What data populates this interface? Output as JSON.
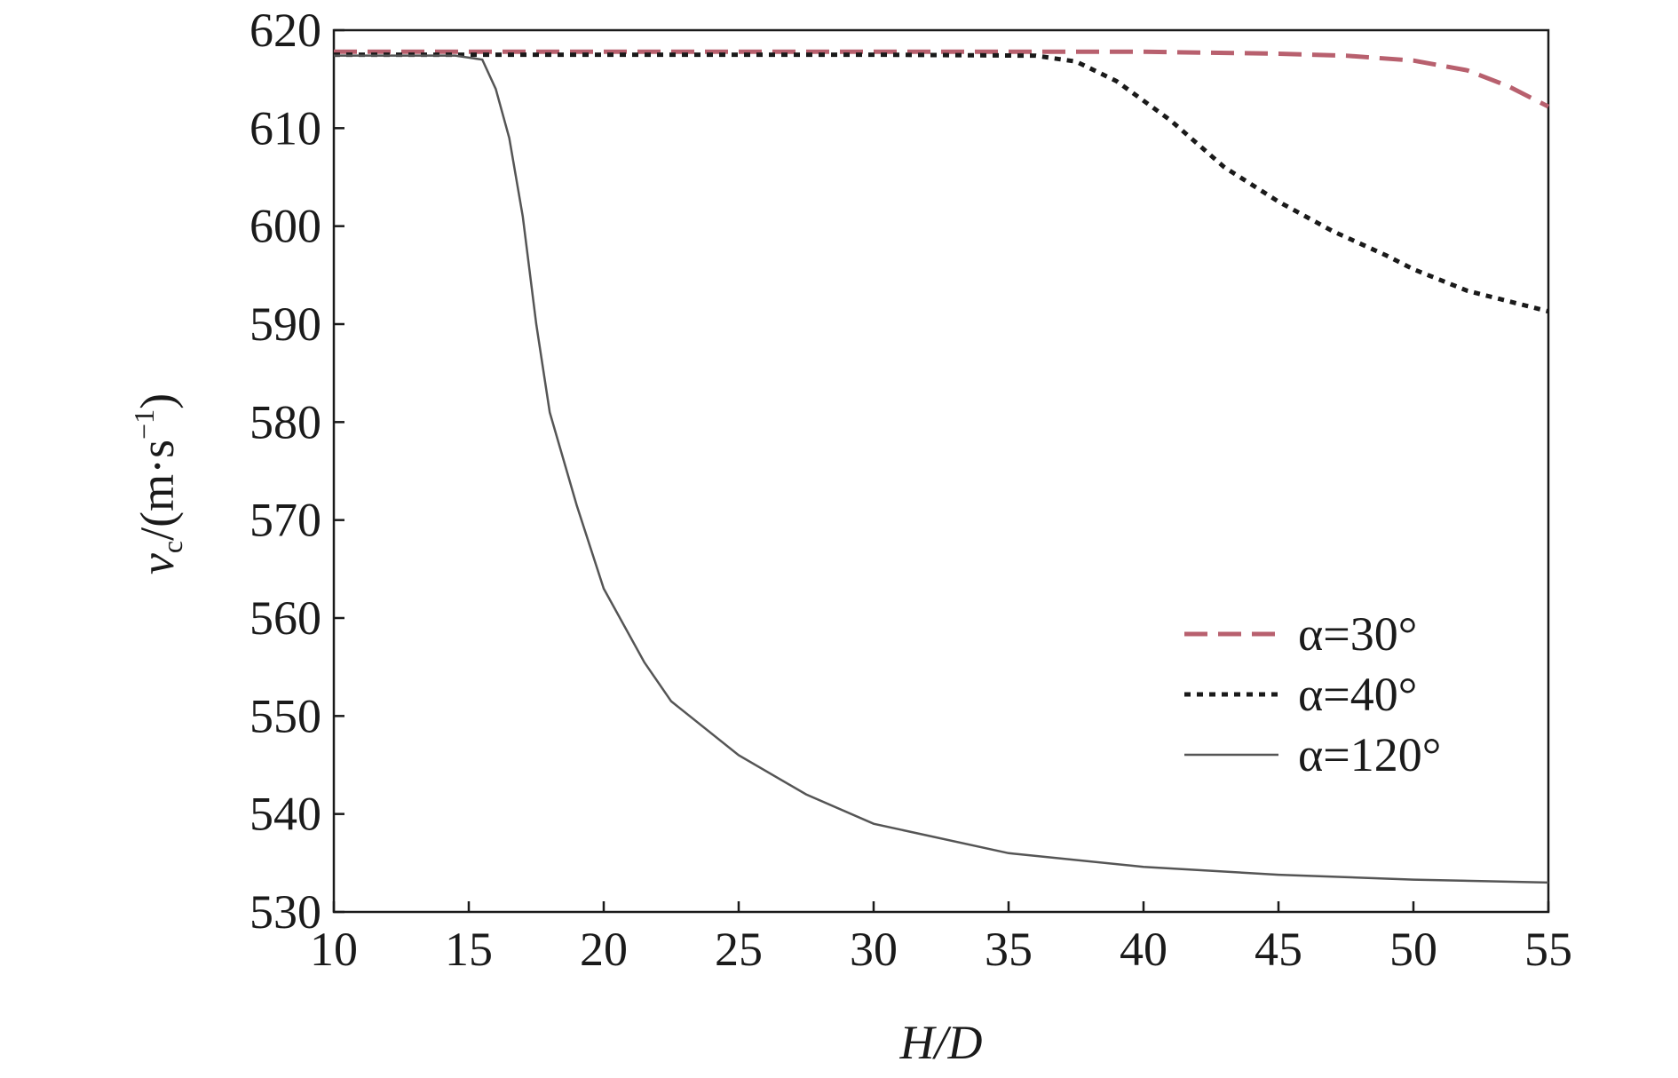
{
  "chart_data": {
    "type": "line",
    "x_label": "H/D",
    "y_label": [
      "v",
      "c",
      "/(m·s",
      "−1",
      ")"
    ],
    "xlim": [
      10,
      55
    ],
    "xticks": [
      10,
      15,
      20,
      25,
      30,
      35,
      40,
      45,
      50,
      55
    ],
    "ylim": [
      530,
      620
    ],
    "yticks": [
      530,
      540,
      550,
      560,
      570,
      580,
      590,
      600,
      610,
      620
    ],
    "legend": "lower right",
    "series": [
      {
        "name": "α=30°",
        "color": "#b8606e",
        "dash": "dashed",
        "x": [
          10,
          20,
          30,
          40,
          45,
          47.5,
          50,
          52,
          53.5,
          55
        ],
        "values": [
          617.8,
          617.8,
          617.8,
          617.8,
          617.6,
          617.4,
          616.9,
          615.9,
          614.3,
          612.2
        ]
      },
      {
        "name": "α=40°",
        "color": "#1a1a1a",
        "dash": "dotted",
        "x": [
          10,
          20,
          30,
          36,
          37.5,
          39,
          41,
          43,
          45,
          47,
          49,
          50,
          52,
          55
        ],
        "values": [
          617.5,
          617.5,
          617.5,
          617.4,
          616.8,
          614.8,
          610.8,
          606.0,
          602.5,
          599.5,
          597.0,
          595.6,
          593.4,
          591.3
        ]
      },
      {
        "name": "α=120°",
        "color": "#555555",
        "dash": "solid",
        "x": [
          10,
          14.5,
          15.5,
          16,
          16.5,
          17,
          17.5,
          18,
          19,
          20,
          21.5,
          22.5,
          25,
          27.5,
          30,
          35,
          40,
          45,
          50,
          55
        ],
        "values": [
          617.4,
          617.4,
          617.0,
          614.0,
          609.0,
          601.0,
          590.0,
          581.0,
          571.5,
          563.0,
          555.5,
          551.5,
          546.0,
          542.0,
          539.0,
          536.0,
          534.6,
          533.8,
          533.3,
          533.0
        ]
      }
    ]
  }
}
